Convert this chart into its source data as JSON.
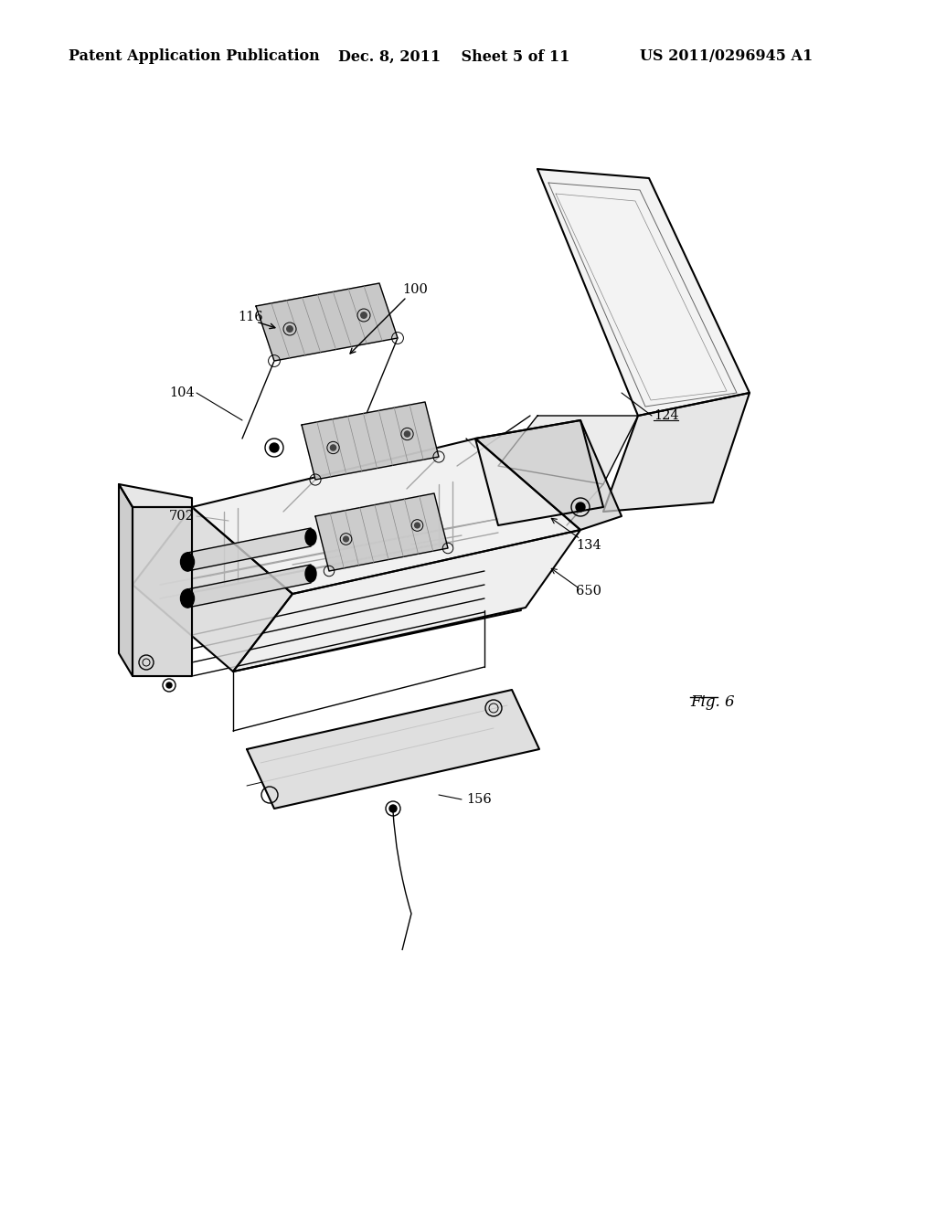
{
  "bg_color": "#ffffff",
  "header_left": "Patent Application Publication",
  "header_mid": "Dec. 8, 2011    Sheet 5 of 11",
  "header_right": "US 2011/0296945 A1",
  "fig_label": "Fig. 6",
  "header_fontsize": 11.5,
  "label_fontsize": 10.5,
  "fig_width": 10.24,
  "fig_height": 13.2,
  "dpi": 100
}
